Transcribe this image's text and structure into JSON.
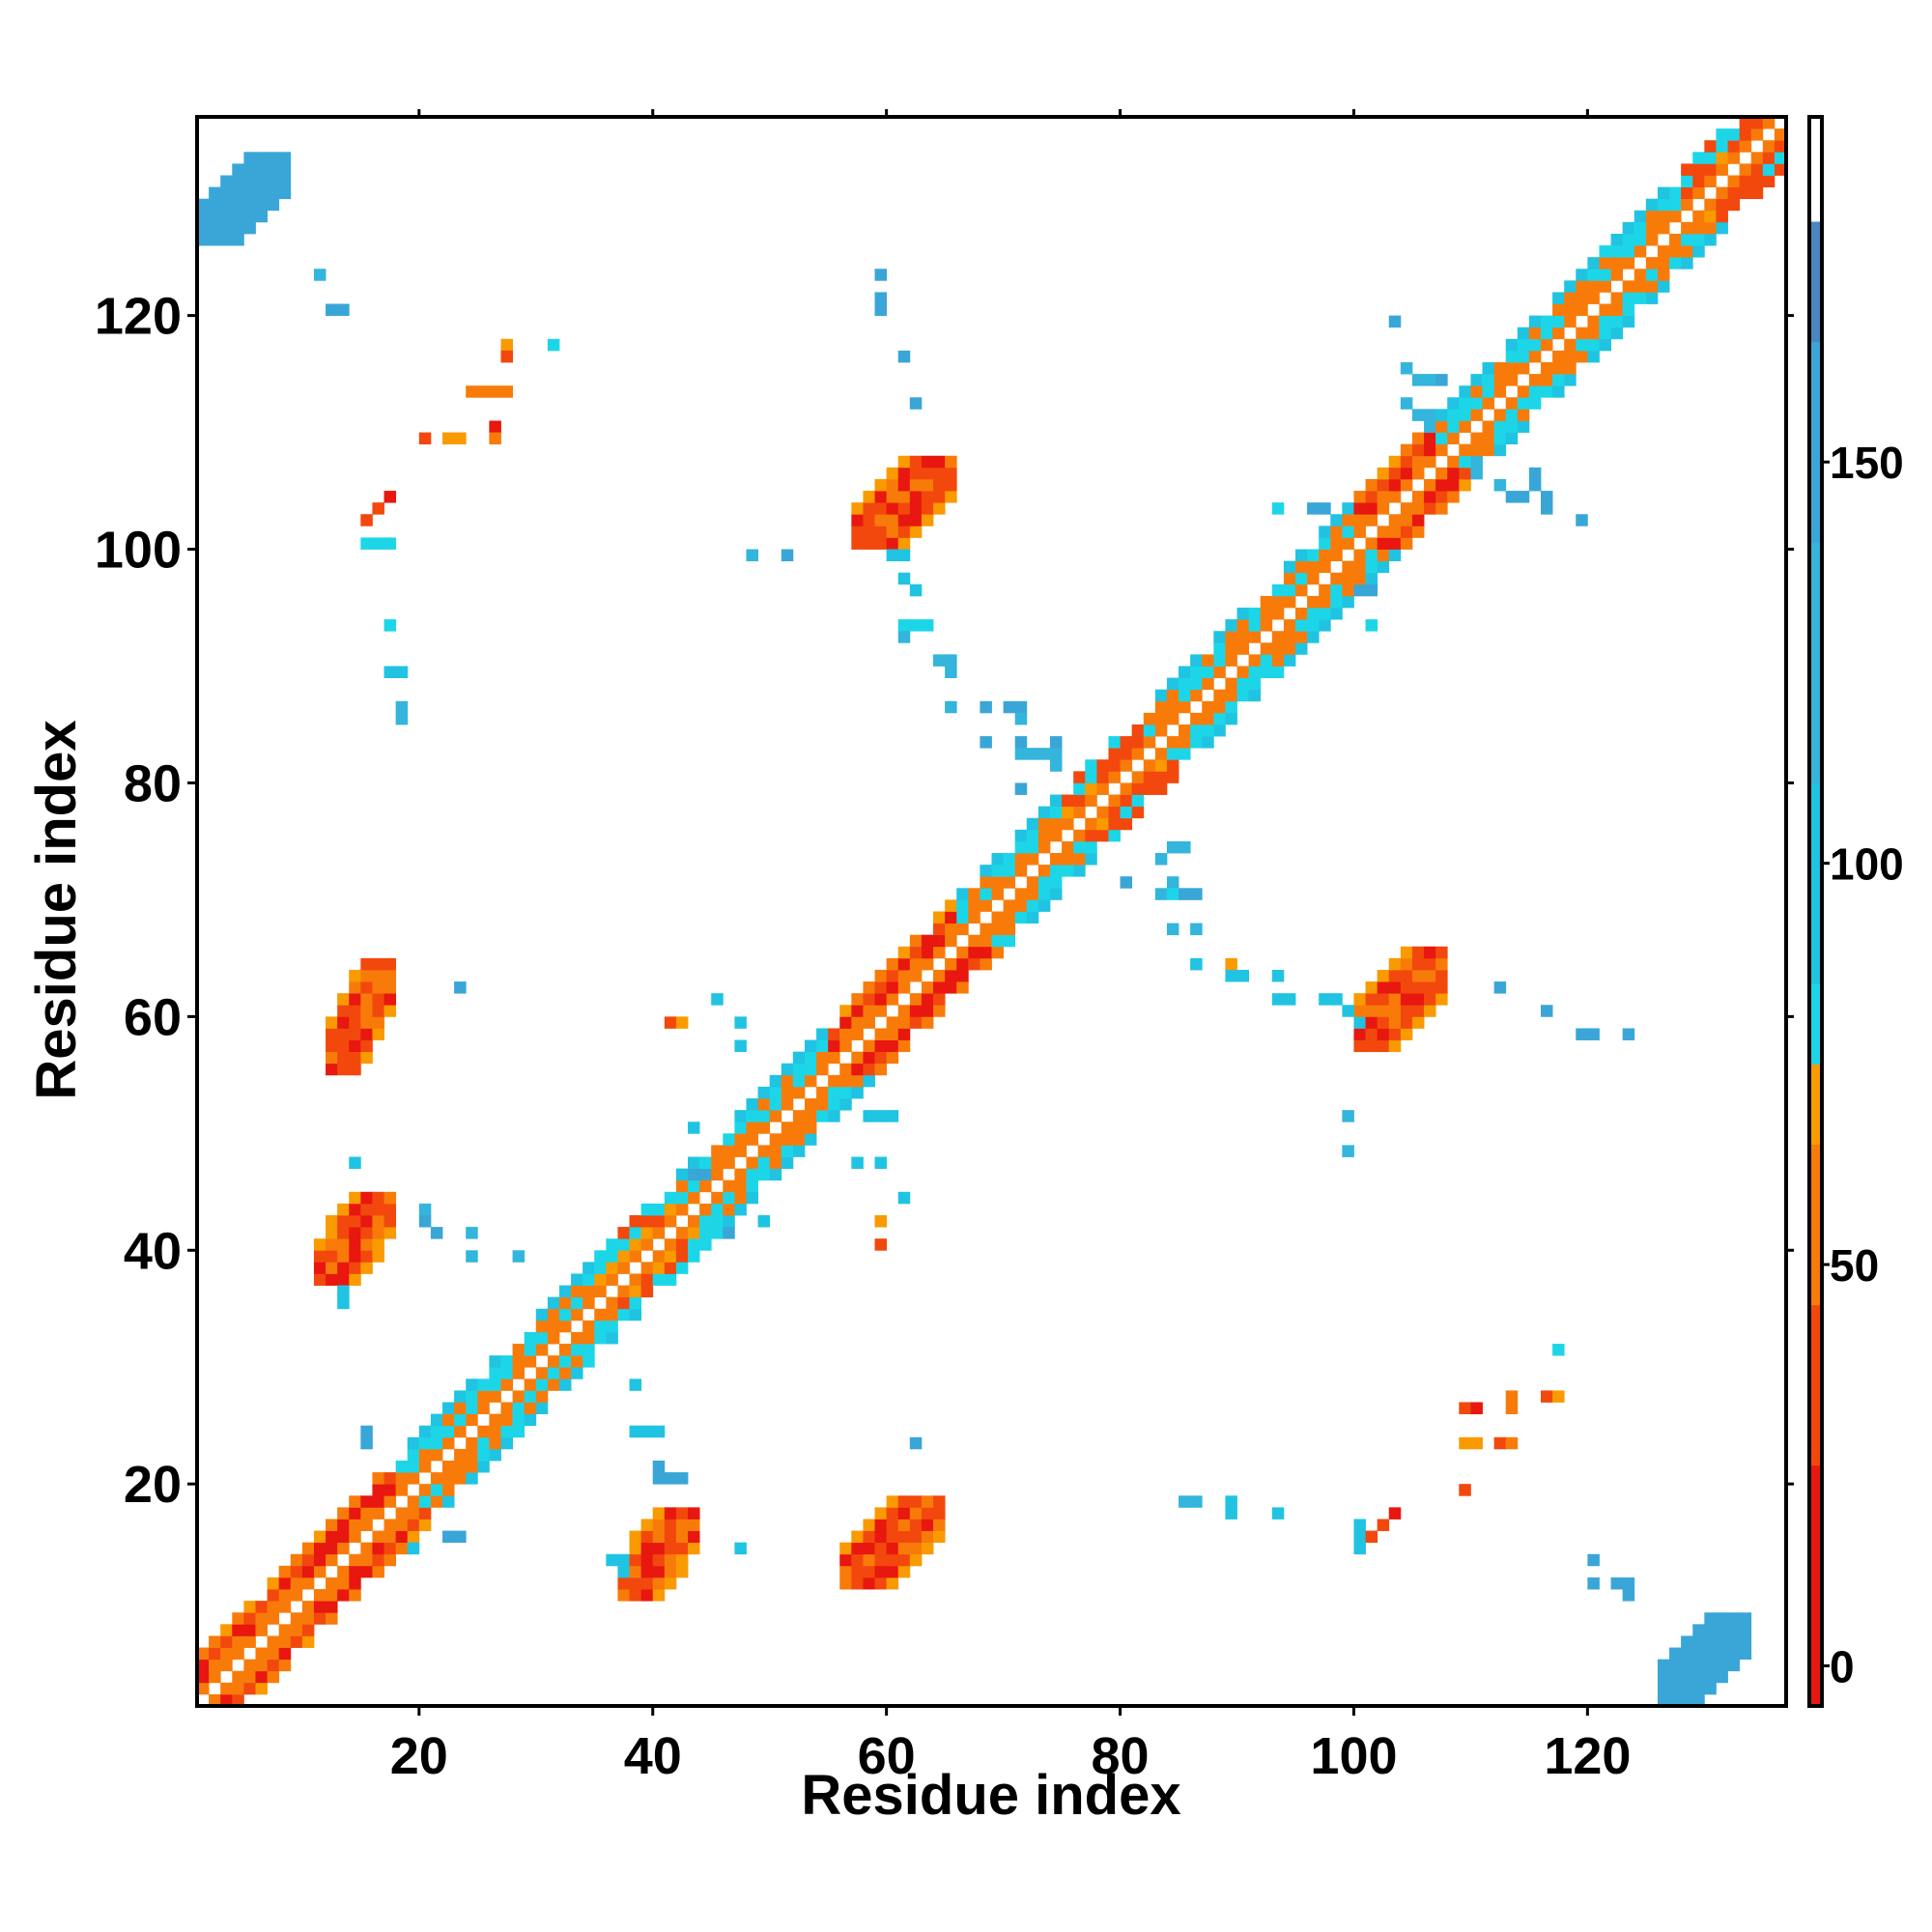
{
  "chart_data": {
    "type": "heatmap",
    "title": "",
    "xlabel": "Residue index",
    "ylabel": "Residue index",
    "xlim": [
      1,
      137
    ],
    "ylim": [
      1,
      137
    ],
    "x_ticks": [
      20,
      40,
      60,
      80,
      100,
      120
    ],
    "y_ticks": [
      20,
      40,
      60,
      80,
      100,
      120
    ],
    "colorbar": {
      "ticks": [
        0,
        50,
        100,
        150
      ],
      "range": [
        -5,
        193
      ],
      "bands": [
        {
          "from": -5,
          "to": 25,
          "color": "#e8170f"
        },
        {
          "from": 25,
          "to": 45,
          "color": "#f2480d"
        },
        {
          "from": 45,
          "to": 65,
          "color": "#f87b0a"
        },
        {
          "from": 65,
          "to": 75,
          "color": "#f99a00"
        },
        {
          "from": 75,
          "to": 85,
          "color": "#1cd6e8"
        },
        {
          "from": 85,
          "to": 110,
          "color": "#20c4e2"
        },
        {
          "from": 110,
          "to": 140,
          "color": "#33b5dc"
        },
        {
          "from": 140,
          "to": 165,
          "color": "#3aa6d8"
        },
        {
          "from": 165,
          "to": 180,
          "color": "#4a86c0"
        },
        {
          "from": 180,
          "to": 193,
          "color": "#ffffff"
        }
      ]
    },
    "diagonal": {
      "from": 1,
      "to": 136,
      "halfwidth": 4
    },
    "diagonal_segments": [
      {
        "from": 1,
        "to": 18,
        "kind": "red"
      },
      {
        "from": 18,
        "to": 35,
        "kind": "cyan"
      },
      {
        "from": 35,
        "to": 42,
        "kind": "mixed"
      },
      {
        "from": 42,
        "to": 55,
        "kind": "cyan"
      },
      {
        "from": 55,
        "to": 66,
        "kind": "red"
      },
      {
        "from": 66,
        "to": 75,
        "kind": "cyan"
      },
      {
        "from": 75,
        "to": 82,
        "kind": "mixed"
      },
      {
        "from": 82,
        "to": 100,
        "kind": "cyan"
      },
      {
        "from": 100,
        "to": 107,
        "kind": "red"
      },
      {
        "from": 107,
        "to": 128,
        "kind": "cyan"
      },
      {
        "from": 128,
        "to": 136,
        "kind": "mixed"
      }
    ],
    "contact_blobs": [
      {
        "x1": 12,
        "x2": 17,
        "y1": 55,
        "y2": 64,
        "value": 30
      },
      {
        "x1": 11,
        "x2": 17,
        "y1": 37,
        "y2": 44,
        "value": 35
      },
      {
        "x1": 37,
        "x2": 43,
        "y1": 10,
        "y2": 17,
        "value": 35
      },
      {
        "x1": 56,
        "x2": 64,
        "y1": 11,
        "y2": 18,
        "value": 30
      },
      {
        "x1": 57,
        "x2": 65,
        "y1": 100,
        "y2": 107,
        "value": 30
      },
      {
        "x1": 100,
        "x2": 107,
        "y1": 57,
        "y2": 65,
        "value": 30
      },
      {
        "x1": 1,
        "x2": 8,
        "y1": 126,
        "y2": 133,
        "value": 140
      },
      {
        "x1": 126,
        "x2": 133,
        "y1": 1,
        "y2": 8,
        "value": 140
      }
    ],
    "contacts": [
      {
        "x": 11,
        "y": 123,
        "v": 120
      },
      {
        "x": 12,
        "y": 120,
        "v": 150
      },
      {
        "x": 13,
        "y": 120,
        "v": 150
      },
      {
        "x": 27,
        "y": 117,
        "v": 70
      },
      {
        "x": 27,
        "y": 116,
        "v": 40
      },
      {
        "x": 31,
        "y": 117,
        "v": 80
      },
      {
        "x": 24,
        "y": 113,
        "v": 60
      },
      {
        "x": 25,
        "y": 113,
        "v": 60
      },
      {
        "x": 26,
        "y": 113,
        "v": 60
      },
      {
        "x": 27,
        "y": 113,
        "v": 60
      },
      {
        "x": 20,
        "y": 109,
        "v": 40
      },
      {
        "x": 22,
        "y": 109,
        "v": 70
      },
      {
        "x": 23,
        "y": 109,
        "v": 70
      },
      {
        "x": 26,
        "y": 110,
        "v": 20
      },
      {
        "x": 26,
        "y": 109,
        "v": 60
      },
      {
        "x": 16,
        "y": 103,
        "v": 30
      },
      {
        "x": 17,
        "y": 104,
        "v": 20
      },
      {
        "x": 15,
        "y": 102,
        "v": 40
      },
      {
        "x": 15,
        "y": 100,
        "v": 80
      },
      {
        "x": 16,
        "y": 100,
        "v": 80
      },
      {
        "x": 17,
        "y": 100,
        "v": 80
      },
      {
        "x": 17,
        "y": 93,
        "v": 80
      },
      {
        "x": 17,
        "y": 89,
        "v": 100
      },
      {
        "x": 18,
        "y": 89,
        "v": 100
      },
      {
        "x": 18,
        "y": 86,
        "v": 110
      },
      {
        "x": 18,
        "y": 85,
        "v": 110
      },
      {
        "x": 23,
        "y": 62,
        "v": 150
      },
      {
        "x": 14,
        "y": 47,
        "v": 100
      },
      {
        "x": 20,
        "y": 43,
        "v": 110
      },
      {
        "x": 20,
        "y": 42,
        "v": 150
      },
      {
        "x": 21,
        "y": 41,
        "v": 150
      },
      {
        "x": 24,
        "y": 41,
        "v": 110
      },
      {
        "x": 24,
        "y": 39,
        "v": 110
      },
      {
        "x": 28,
        "y": 39,
        "v": 110
      },
      {
        "x": 13,
        "y": 36,
        "v": 100
      },
      {
        "x": 13,
        "y": 35,
        "v": 100
      },
      {
        "x": 59,
        "y": 123,
        "v": 140
      },
      {
        "x": 59,
        "y": 121,
        "v": 140
      },
      {
        "x": 59,
        "y": 120,
        "v": 140
      },
      {
        "x": 61,
        "y": 116,
        "v": 140
      },
      {
        "x": 62,
        "y": 112,
        "v": 150
      },
      {
        "x": 48,
        "y": 99,
        "v": 110
      },
      {
        "x": 51,
        "y": 99,
        "v": 150
      },
      {
        "x": 60,
        "y": 99,
        "v": 100
      },
      {
        "x": 61,
        "y": 99,
        "v": 100
      },
      {
        "x": 61,
        "y": 97,
        "v": 100
      },
      {
        "x": 62,
        "y": 96,
        "v": 100
      },
      {
        "x": 61,
        "y": 93,
        "v": 80
      },
      {
        "x": 62,
        "y": 93,
        "v": 80
      },
      {
        "x": 63,
        "y": 93,
        "v": 80
      },
      {
        "x": 61,
        "y": 92,
        "v": 110
      },
      {
        "x": 64,
        "y": 90,
        "v": 110
      },
      {
        "x": 65,
        "y": 90,
        "v": 110
      },
      {
        "x": 65,
        "y": 89,
        "v": 110
      },
      {
        "x": 65,
        "y": 86,
        "v": 110
      },
      {
        "x": 68,
        "y": 86,
        "v": 150
      },
      {
        "x": 68,
        "y": 83,
        "v": 150
      },
      {
        "x": 70,
        "y": 86,
        "v": 150
      },
      {
        "x": 71,
        "y": 86,
        "v": 150
      },
      {
        "x": 71,
        "y": 85,
        "v": 110
      },
      {
        "x": 71,
        "y": 83,
        "v": 150
      },
      {
        "x": 71,
        "y": 82,
        "v": 110
      },
      {
        "x": 72,
        "y": 82,
        "v": 110
      },
      {
        "x": 73,
        "y": 82,
        "v": 110
      },
      {
        "x": 74,
        "y": 82,
        "v": 110
      },
      {
        "x": 74,
        "y": 83,
        "v": 150
      },
      {
        "x": 74,
        "y": 81,
        "v": 110
      },
      {
        "x": 71,
        "y": 79,
        "v": 150
      },
      {
        "x": 58,
        "y": 51,
        "v": 100
      },
      {
        "x": 59,
        "y": 51,
        "v": 100
      },
      {
        "x": 60,
        "y": 51,
        "v": 100
      },
      {
        "x": 57,
        "y": 47,
        "v": 100
      },
      {
        "x": 59,
        "y": 47,
        "v": 100
      },
      {
        "x": 61,
        "y": 44,
        "v": 100
      },
      {
        "x": 59,
        "y": 42,
        "v": 70
      },
      {
        "x": 59,
        "y": 40,
        "v": 40
      },
      {
        "x": 41,
        "y": 59,
        "v": 40
      },
      {
        "x": 42,
        "y": 59,
        "v": 70
      },
      {
        "x": 45,
        "y": 61,
        "v": 100
      },
      {
        "x": 47,
        "y": 59,
        "v": 100
      },
      {
        "x": 47,
        "y": 57,
        "v": 100
      },
      {
        "x": 43,
        "y": 50,
        "v": 100
      },
      {
        "x": 43,
        "y": 46,
        "v": 150
      },
      {
        "x": 44,
        "y": 46,
        "v": 150
      },
      {
        "x": 49,
        "y": 42,
        "v": 100
      },
      {
        "x": 46,
        "y": 41,
        "v": 150
      },
      {
        "x": 38,
        "y": 28,
        "v": 100
      },
      {
        "x": 38,
        "y": 24,
        "v": 100
      },
      {
        "x": 39,
        "y": 24,
        "v": 100
      },
      {
        "x": 40,
        "y": 24,
        "v": 100
      },
      {
        "x": 40,
        "y": 21,
        "v": 150
      },
      {
        "x": 40,
        "y": 20,
        "v": 150
      },
      {
        "x": 41,
        "y": 20,
        "v": 150
      },
      {
        "x": 42,
        "y": 20,
        "v": 150
      },
      {
        "x": 47,
        "y": 14,
        "v": 100
      },
      {
        "x": 36,
        "y": 13,
        "v": 100
      },
      {
        "x": 37,
        "y": 13,
        "v": 100
      },
      {
        "x": 37,
        "y": 12,
        "v": 100
      },
      {
        "x": 15,
        "y": 24,
        "v": 150
      },
      {
        "x": 15,
        "y": 23,
        "v": 150
      },
      {
        "x": 22,
        "y": 15,
        "v": 150
      },
      {
        "x": 23,
        "y": 15,
        "v": 150
      },
      {
        "x": 19,
        "y": 14,
        "v": 100
      },
      {
        "x": 62,
        "y": 23,
        "v": 150
      },
      {
        "x": 84,
        "y": 74,
        "v": 110
      },
      {
        "x": 85,
        "y": 74,
        "v": 110
      },
      {
        "x": 83,
        "y": 73,
        "v": 110
      },
      {
        "x": 84,
        "y": 71,
        "v": 110
      },
      {
        "x": 83,
        "y": 70,
        "v": 110
      },
      {
        "x": 84,
        "y": 70,
        "v": 80
      },
      {
        "x": 85,
        "y": 70,
        "v": 150
      },
      {
        "x": 86,
        "y": 70,
        "v": 150
      },
      {
        "x": 80,
        "y": 71,
        "v": 150
      },
      {
        "x": 84,
        "y": 67,
        "v": 110
      },
      {
        "x": 86,
        "y": 67,
        "v": 110
      },
      {
        "x": 86,
        "y": 64,
        "v": 100
      },
      {
        "x": 89,
        "y": 64,
        "v": 70
      },
      {
        "x": 89,
        "y": 63,
        "v": 100
      },
      {
        "x": 90,
        "y": 63,
        "v": 100
      },
      {
        "x": 93,
        "y": 63,
        "v": 100
      },
      {
        "x": 93,
        "y": 61,
        "v": 100
      },
      {
        "x": 94,
        "y": 61,
        "v": 100
      },
      {
        "x": 97,
        "y": 61,
        "v": 100
      },
      {
        "x": 98,
        "y": 61,
        "v": 100
      },
      {
        "x": 99,
        "y": 60,
        "v": 100
      },
      {
        "x": 100,
        "y": 59,
        "v": 100
      },
      {
        "x": 99,
        "y": 51,
        "v": 110
      },
      {
        "x": 99,
        "y": 48,
        "v": 110
      },
      {
        "x": 112,
        "y": 62,
        "v": 150
      },
      {
        "x": 116,
        "y": 60,
        "v": 150
      },
      {
        "x": 119,
        "y": 58,
        "v": 140
      },
      {
        "x": 120,
        "y": 58,
        "v": 140
      },
      {
        "x": 123,
        "y": 58,
        "v": 140
      },
      {
        "x": 93,
        "y": 103,
        "v": 80
      },
      {
        "x": 96,
        "y": 103,
        "v": 140
      },
      {
        "x": 97,
        "y": 103,
        "v": 140
      },
      {
        "x": 100,
        "y": 96,
        "v": 140
      },
      {
        "x": 101,
        "y": 96,
        "v": 140
      },
      {
        "x": 101,
        "y": 93,
        "v": 80
      },
      {
        "x": 103,
        "y": 119,
        "v": 150
      },
      {
        "x": 104,
        "y": 115,
        "v": 110
      },
      {
        "x": 105,
        "y": 114,
        "v": 110
      },
      {
        "x": 106,
        "y": 114,
        "v": 110
      },
      {
        "x": 107,
        "y": 114,
        "v": 150
      },
      {
        "x": 104,
        "y": 112,
        "v": 110
      },
      {
        "x": 105,
        "y": 111,
        "v": 110
      },
      {
        "x": 106,
        "y": 111,
        "v": 110
      },
      {
        "x": 106,
        "y": 110,
        "v": 110
      },
      {
        "x": 110,
        "y": 107,
        "v": 110
      },
      {
        "x": 110,
        "y": 106,
        "v": 110
      },
      {
        "x": 112,
        "y": 105,
        "v": 110
      },
      {
        "x": 113,
        "y": 104,
        "v": 150
      },
      {
        "x": 114,
        "y": 104,
        "v": 150
      },
      {
        "x": 115,
        "y": 106,
        "v": 150
      },
      {
        "x": 115,
        "y": 105,
        "v": 150
      },
      {
        "x": 116,
        "y": 104,
        "v": 150
      },
      {
        "x": 116,
        "y": 103,
        "v": 150
      },
      {
        "x": 119,
        "y": 102,
        "v": 150
      },
      {
        "x": 117,
        "y": 31,
        "v": 80
      },
      {
        "x": 109,
        "y": 26,
        "v": 40
      },
      {
        "x": 110,
        "y": 26,
        "v": 20
      },
      {
        "x": 113,
        "y": 27,
        "v": 60
      },
      {
        "x": 113,
        "y": 26,
        "v": 60
      },
      {
        "x": 116,
        "y": 27,
        "v": 40
      },
      {
        "x": 117,
        "y": 27,
        "v": 70
      },
      {
        "x": 109,
        "y": 23,
        "v": 70
      },
      {
        "x": 110,
        "y": 23,
        "v": 70
      },
      {
        "x": 112,
        "y": 23,
        "v": 40
      },
      {
        "x": 113,
        "y": 23,
        "v": 60
      },
      {
        "x": 109,
        "y": 19,
        "v": 40
      },
      {
        "x": 85,
        "y": 18,
        "v": 110
      },
      {
        "x": 86,
        "y": 18,
        "v": 110
      },
      {
        "x": 89,
        "y": 18,
        "v": 100
      },
      {
        "x": 89,
        "y": 17,
        "v": 100
      },
      {
        "x": 93,
        "y": 17,
        "v": 100
      },
      {
        "x": 100,
        "y": 16,
        "v": 100
      },
      {
        "x": 100,
        "y": 15,
        "v": 100
      },
      {
        "x": 100,
        "y": 14,
        "v": 100
      },
      {
        "x": 102,
        "y": 16,
        "v": 40
      },
      {
        "x": 103,
        "y": 17,
        "v": 20
      },
      {
        "x": 101,
        "y": 15,
        "v": 40
      },
      {
        "x": 120,
        "y": 13,
        "v": 150
      },
      {
        "x": 120,
        "y": 11,
        "v": 150
      },
      {
        "x": 122,
        "y": 11,
        "v": 140
      },
      {
        "x": 123,
        "y": 11,
        "v": 140
      },
      {
        "x": 123,
        "y": 10,
        "v": 140
      }
    ]
  }
}
